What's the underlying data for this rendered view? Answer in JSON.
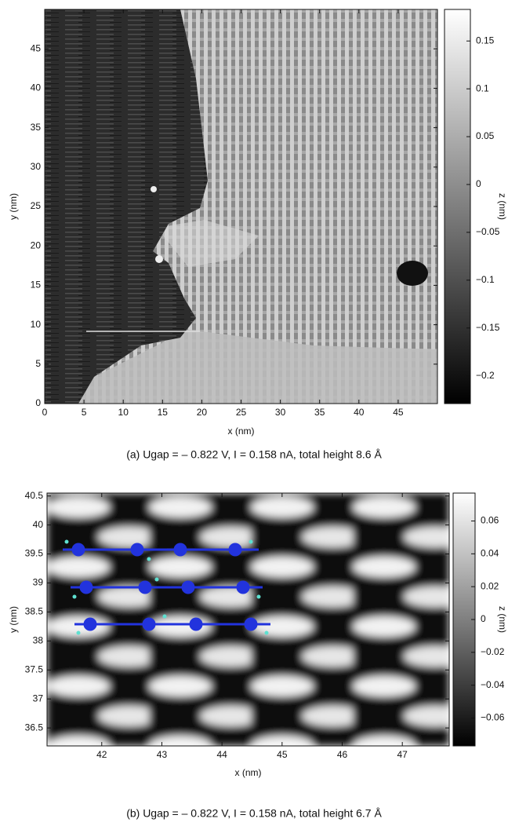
{
  "chart_data": [
    {
      "type": "heatmap",
      "caption": "(a) Ugap = – 0.822 V, I = 0.158 nA, total height 8.6 Å",
      "xlabel": "x (nm)",
      "ylabel": "y (nm)",
      "zlabel": "z (nm)",
      "xlim": [
        0,
        50
      ],
      "xticks": [
        0,
        5,
        10,
        15,
        20,
        25,
        30,
        35,
        40,
        45
      ],
      "ylim": [
        0,
        50
      ],
      "yticks": [
        0,
        5,
        10,
        15,
        20,
        25,
        30,
        35,
        40,
        45
      ],
      "zlim": [
        -0.229,
        0.183
      ],
      "zticks": [
        {
          "value": -0.2,
          "label": "−0.2"
        },
        {
          "value": -0.15,
          "label": "−0.15"
        },
        {
          "value": -0.1,
          "label": "−0.1"
        },
        {
          "value": -0.05,
          "label": "−0.05"
        },
        0,
        0.05,
        0.1,
        0.15
      ],
      "colormap": [
        "#000000",
        "#ffffff"
      ]
    },
    {
      "type": "heatmap",
      "caption": "(b) Ugap = – 0.822 V, I = 0.158 nA, total height 6.7 Å",
      "xlabel": "x (nm)",
      "ylabel": "y (nm)",
      "zlabel": "z (nm)",
      "xlim": [
        41.09,
        47.78
      ],
      "xticks": [
        42,
        43,
        44,
        45,
        46,
        47
      ],
      "ylim": [
        36.19,
        40.55
      ],
      "yticks": [
        36.5,
        37,
        37.5,
        38,
        38.5,
        39,
        39.5,
        40,
        40.5
      ],
      "zlim": [
        -0.077,
        0.077
      ],
      "zticks": [
        {
          "value": -0.06,
          "label": "−0.06"
        },
        {
          "value": -0.04,
          "label": "−0.04"
        },
        {
          "value": -0.02,
          "label": "−0.02"
        },
        0,
        0.02,
        0.04,
        0.06
      ],
      "colormap": [
        "#000000",
        "#ffffff"
      ]
    }
  ]
}
